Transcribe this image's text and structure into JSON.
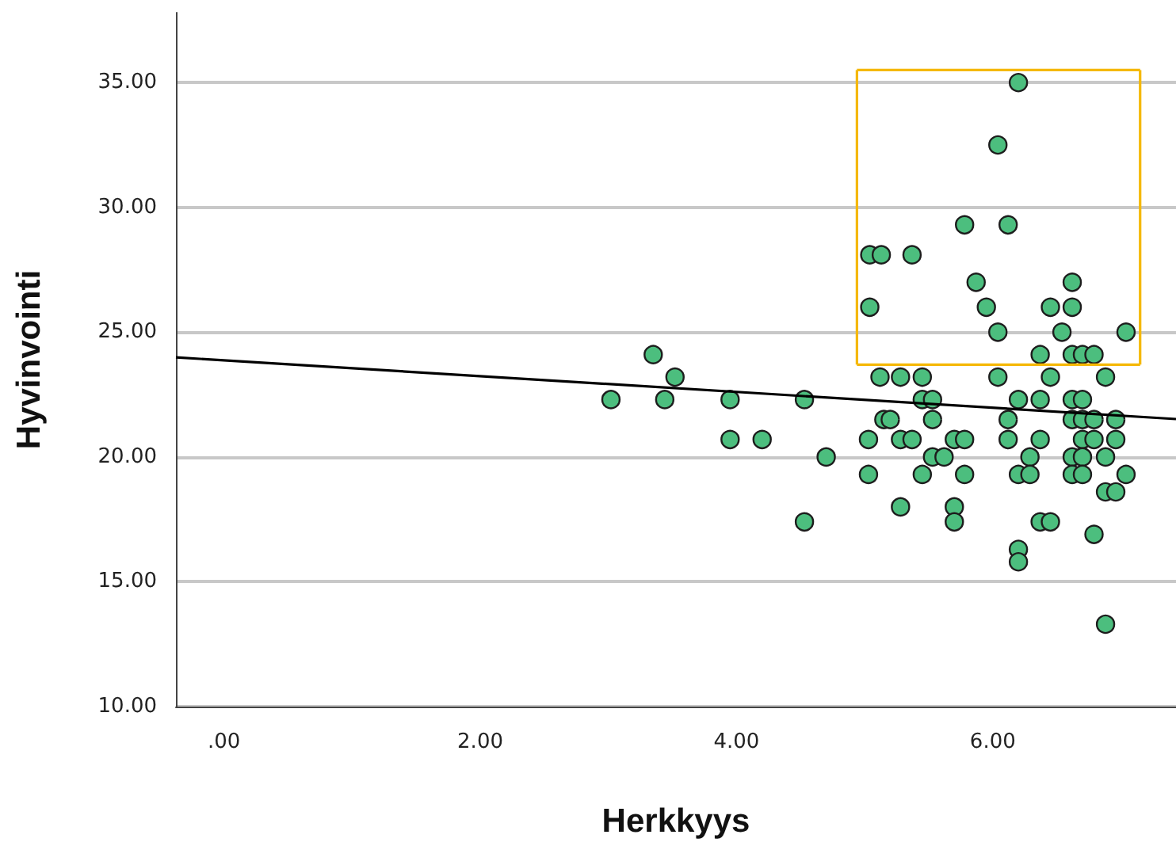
{
  "chart_data": {
    "type": "scatter",
    "xlabel": "Herkkyys",
    "ylabel": "Hyvinvointi",
    "xlim": [
      -0.375,
      7.43
    ],
    "ylim": [
      10,
      37.8
    ],
    "xticks": [
      {
        "value": 0,
        "label": ".00"
      },
      {
        "value": 2,
        "label": "2.00"
      },
      {
        "value": 4,
        "label": "4.00"
      },
      {
        "value": 6,
        "label": "6.00"
      }
    ],
    "yticks": [
      {
        "value": 10,
        "label": "10.00"
      },
      {
        "value": 15,
        "label": "15.00"
      },
      {
        "value": 20,
        "label": "20.00"
      },
      {
        "value": 25,
        "label": "25.00"
      },
      {
        "value": 30,
        "label": "30.00"
      },
      {
        "value": 35,
        "label": "35.00"
      }
    ],
    "grid": "y",
    "marker": "circle",
    "series": [
      {
        "color": "#4cbe7e",
        "x": [
          3.35,
          3.52,
          3.02,
          3.44,
          3.95,
          4.53,
          3.95,
          4.2,
          4.7,
          5.03,
          5.03,
          4.53,
          5.15,
          6.2,
          6.04,
          5.78,
          6.12,
          5.04,
          5.13,
          5.37,
          5.87,
          6.62,
          5.04,
          5.95,
          6.45,
          6.62,
          6.04,
          6.54,
          7.04,
          6.37,
          6.62,
          6.7,
          6.79,
          5.12,
          5.28,
          5.45,
          6.04,
          6.45,
          6.88,
          5.45,
          5.53,
          6.2,
          6.37,
          6.62,
          6.7,
          5.2,
          5.53,
          6.12,
          6.62,
          6.7,
          6.79,
          6.96,
          5.28,
          5.37,
          5.7,
          5.78,
          6.12,
          6.37,
          6.7,
          6.79,
          6.96,
          5.53,
          5.62,
          6.29,
          6.62,
          6.7,
          6.88,
          5.45,
          5.78,
          6.2,
          6.29,
          6.62,
          6.7,
          7.04,
          6.88,
          6.96,
          5.28,
          5.7,
          5.7,
          6.37,
          6.45,
          6.79,
          6.2,
          6.2,
          6.88
        ],
        "values": [
          24.1,
          23.2,
          22.3,
          22.3,
          22.3,
          22.3,
          20.7,
          20.7,
          20.0,
          20.7,
          19.3,
          17.4,
          21.5,
          35.0,
          32.5,
          29.3,
          29.3,
          28.1,
          28.1,
          28.1,
          27.0,
          27.0,
          26.0,
          26.0,
          26.0,
          26.0,
          25.0,
          25.0,
          25.0,
          24.1,
          24.1,
          24.1,
          24.1,
          23.2,
          23.2,
          23.2,
          23.2,
          23.2,
          23.2,
          22.3,
          22.3,
          22.3,
          22.3,
          22.3,
          22.3,
          21.5,
          21.5,
          21.5,
          21.5,
          21.5,
          21.5,
          21.5,
          20.7,
          20.7,
          20.7,
          20.7,
          20.7,
          20.7,
          20.7,
          20.7,
          20.7,
          20.0,
          20.0,
          20.0,
          20.0,
          20.0,
          20.0,
          19.3,
          19.3,
          19.3,
          19.3,
          19.3,
          19.3,
          19.3,
          18.6,
          18.6,
          18.0,
          18.0,
          17.4,
          17.4,
          17.4,
          16.9,
          16.3,
          15.8,
          13.3
        ]
      },
      {
        "type": "line",
        "color": "#000000",
        "marker": "none",
        "x": [
          -0.375,
          7.43
        ],
        "values": [
          23.99,
          21.52
        ]
      },
      {
        "type": "line",
        "color": "#f5b800",
        "marker": "none",
        "x": [
          4.94,
          7.15
        ],
        "values": [
          35.5,
          35.5
        ]
      },
      {
        "type": "line",
        "color": "#f5b800",
        "marker": "none",
        "x": [
          4.94,
          7.15
        ],
        "values": [
          23.7,
          23.7
        ]
      },
      {
        "type": "line",
        "color": "#f5b800",
        "marker": "none",
        "x": [
          4.94,
          4.94
        ],
        "values": [
          23.7,
          35.5
        ]
      },
      {
        "type": "line",
        "color": "#f5b800",
        "marker": "none",
        "x": [
          7.15,
          7.15
        ],
        "values": [
          23.7,
          35.5
        ]
      }
    ]
  }
}
